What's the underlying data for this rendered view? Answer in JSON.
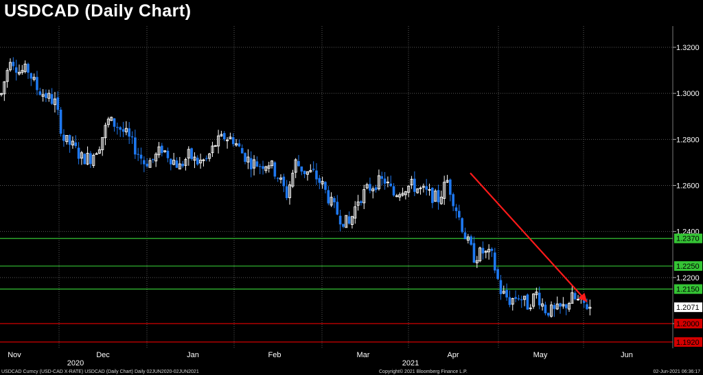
{
  "chart_data": {
    "type": "candlestick",
    "title": "USDCAD (Daily Chart)",
    "y_ticks": [
      "1.3200",
      "1.3000",
      "1.2800",
      "1.2600",
      "1.2400",
      "1.2200",
      "1.2000"
    ],
    "ylim": [
      1.1905,
      1.3255
    ],
    "x_month_labels": [
      "Nov",
      "Dec",
      "Jan",
      "Feb",
      "Mar",
      "Apr",
      "May",
      "Jun"
    ],
    "x_year_labels": [
      "2020",
      "2021"
    ],
    "last_price": "1.2071",
    "support_resistance": [
      {
        "label": "1.2370",
        "value": 1.237,
        "color": "#35c435"
      },
      {
        "label": "1.2250",
        "value": 1.225,
        "color": "#35c435"
      },
      {
        "label": "1.2150",
        "value": 1.215,
        "color": "#35c435"
      },
      {
        "label": "1.2000",
        "value": 1.2,
        "color": "#d40000"
      },
      {
        "label": "1.1920",
        "value": 1.192,
        "color": "#d40000"
      }
    ],
    "trend_arrow": {
      "from_month": "Apr",
      "to_month": "May",
      "from_value": 1.2654,
      "to_value": 1.2095,
      "color": "#ff1a1a"
    },
    "up_color": "#ffffff",
    "down_color": "#1e78f0",
    "grid": true,
    "anchors": [
      [
        0,
        1.2995
      ],
      [
        3,
        1.316
      ],
      [
        6,
        1.3095
      ],
      [
        9,
        1.31
      ],
      [
        12,
        1.302
      ],
      [
        15,
        1.299
      ],
      [
        18,
        1.296
      ],
      [
        21,
        1.28
      ],
      [
        24,
        1.277
      ],
      [
        27,
        1.272
      ],
      [
        30,
        1.272
      ],
      [
        33,
        1.278
      ],
      [
        36,
        1.288
      ],
      [
        39,
        1.286
      ],
      [
        42,
        1.282
      ],
      [
        45,
        1.276
      ],
      [
        48,
        1.27
      ],
      [
        51,
        1.271
      ],
      [
        54,
        1.276
      ],
      [
        57,
        1.272
      ],
      [
        60,
        1.268
      ],
      [
        63,
        1.273
      ],
      [
        66,
        1.27
      ],
      [
        69,
        1.271
      ],
      [
        72,
        1.278
      ],
      [
        75,
        1.281
      ],
      [
        78,
        1.28
      ],
      [
        81,
        1.274
      ],
      [
        84,
        1.27
      ],
      [
        87,
        1.269
      ],
      [
        90,
        1.27
      ],
      [
        93,
        1.264
      ],
      [
        96,
        1.256
      ],
      [
        99,
        1.27
      ],
      [
        102,
        1.266
      ],
      [
        105,
        1.265
      ],
      [
        108,
        1.26
      ],
      [
        111,
        1.252
      ],
      [
        114,
        1.246
      ],
      [
        117,
        1.243
      ],
      [
        120,
        1.254
      ],
      [
        123,
        1.258
      ],
      [
        126,
        1.261
      ],
      [
        129,
        1.262
      ],
      [
        132,
        1.256
      ],
      [
        135,
        1.259
      ],
      [
        138,
        1.26
      ],
      [
        141,
        1.258
      ],
      [
        144,
        1.256
      ],
      [
        147,
        1.254
      ],
      [
        150,
        1.262
      ],
      [
        153,
        1.25
      ],
      [
        156,
        1.238
      ],
      [
        159,
        1.229
      ],
      [
        162,
        1.231
      ],
      [
        165,
        1.229
      ],
      [
        168,
        1.214
      ],
      [
        171,
        1.21
      ],
      [
        174,
        1.212
      ],
      [
        177,
        1.208
      ],
      [
        180,
        1.213
      ],
      [
        183,
        1.206
      ],
      [
        186,
        1.205
      ],
      [
        189,
        1.207
      ],
      [
        192,
        1.211
      ],
      [
        195,
        1.209
      ],
      [
        198,
        1.2071
      ]
    ]
  },
  "footer": {
    "left": "USDCAD Curncy (USD-CAD X-RATE) USDCAD (Daily Chart)  Daily 02JUN2020-02JUN2021",
    "center": "Copyright© 2021 Bloomberg Finance L.P.",
    "right": "02-Jun-2021 06:36:17"
  }
}
